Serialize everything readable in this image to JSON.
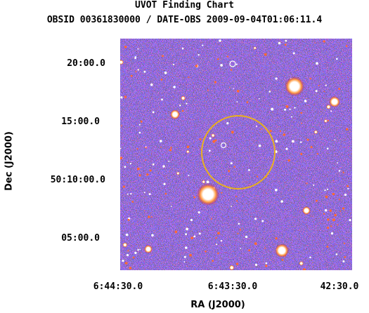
{
  "chart_data": {
    "type": "sky-image",
    "title": "UVOT Finding Chart",
    "subtitle": "OBSID 00361830000 / DATE-OBS 2009-09-04T01:06:11.4",
    "xlabel": "RA (J2000)",
    "ylabel": "Dec (J2000)",
    "x_ticks": [
      "6:44:30.0",
      "6:43:30.0",
      "42:30.0"
    ],
    "y_ticks": [
      "20:00.0",
      "15:00.0",
      "50:10:00.0",
      "05:00.0"
    ],
    "target_circle": {
      "shape": "circle",
      "color": "#e8b020"
    },
    "sources_marked": [
      {
        "shape": "small-circle",
        "color": "#ffffff"
      }
    ],
    "colormap": [
      "#2a1a8c",
      "#3b2fd8",
      "#c01028",
      "#ff6a30",
      "#ffffff"
    ]
  }
}
